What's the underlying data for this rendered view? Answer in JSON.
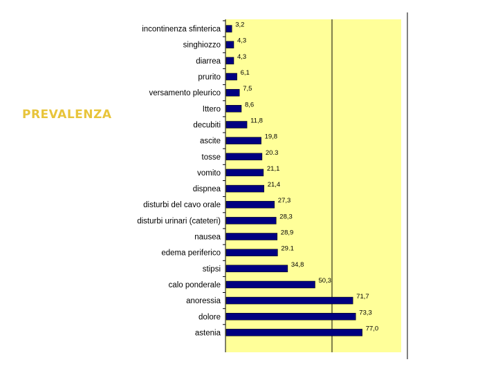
{
  "slide": {
    "title": "PREVALENZA"
  },
  "chart_data": {
    "type": "bar",
    "orientation": "horizontal",
    "categories": [
      "incontinenza sfinterica",
      "singhiozzo",
      "diarrea",
      "prurito",
      "versamento pleurico",
      "Ittero",
      "decubiti",
      "ascite",
      "tosse",
      "vomito",
      "dispnea",
      "disturbi del cavo orale",
      "disturbi urinari (cateteri)",
      "nausea",
      "edema periferico",
      "stipsi",
      "calo ponderale",
      "anoressia",
      "dolore",
      "astenia"
    ],
    "values": [
      3.2,
      4.3,
      4.3,
      6.1,
      7.5,
      8.6,
      11.8,
      19.8,
      20.3,
      21.1,
      21.4,
      27.3,
      28.3,
      28.9,
      29.1,
      34.8,
      50.3,
      71.7,
      73.3,
      77.0
    ],
    "value_labels": [
      "3,2",
      "4,3",
      "4,3",
      "6,1",
      "7,5",
      "8,6",
      "11,8",
      "19,8",
      "20.3",
      "21,1",
      "21,4",
      "27,3",
      "28,3",
      "28,9",
      "29.1",
      "34,8",
      "50,3",
      "71,7",
      "73,3",
      "77,0"
    ],
    "xlim": [
      0,
      100
    ],
    "colors": {
      "bar": "#000080",
      "plot_bg": "#ffff99",
      "title": "#e8c43a"
    }
  }
}
